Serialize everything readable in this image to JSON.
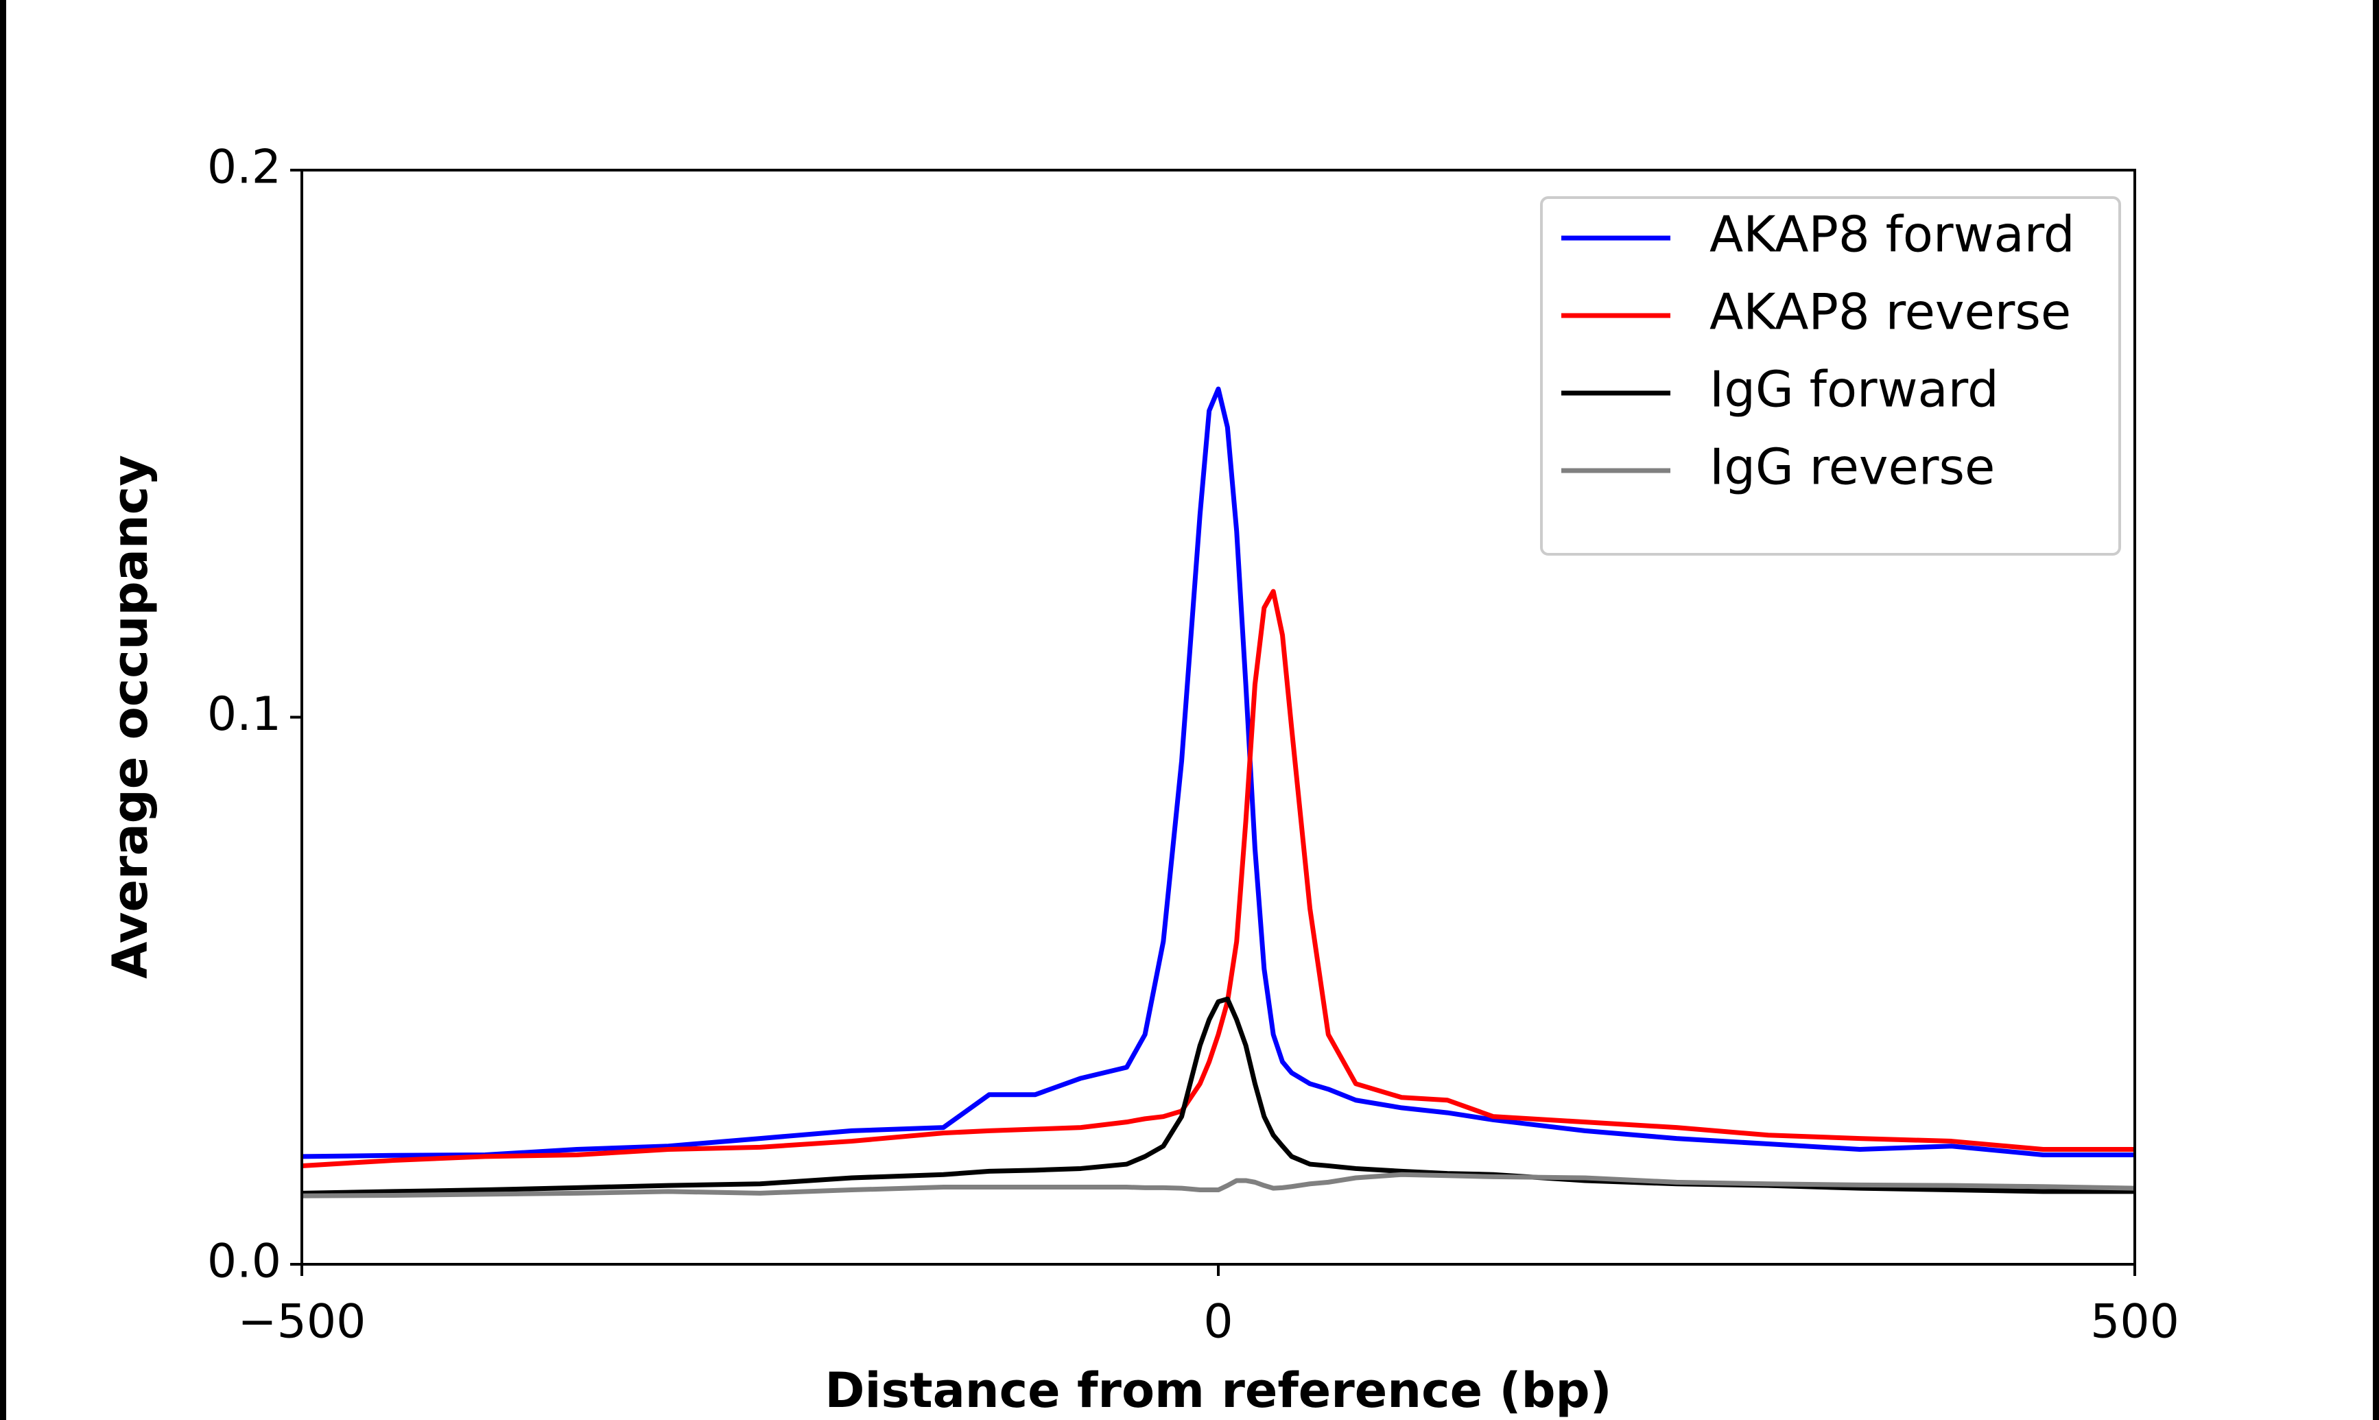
{
  "chart_data": {
    "type": "line",
    "xlabel": "Distance from reference (bp)",
    "ylabel": "Average occupancy",
    "x": [
      -500,
      -450,
      -400,
      -350,
      -300,
      -250,
      -200,
      -150,
      -125,
      -100,
      -75,
      -50,
      -40,
      -30,
      -20,
      -10,
      -5,
      0,
      5,
      10,
      15,
      20,
      25,
      30,
      35,
      40,
      50,
      60,
      75,
      100,
      125,
      150,
      200,
      250,
      300,
      350,
      400,
      450,
      500
    ],
    "series": [
      {
        "name": "AKAP8 forward",
        "color": "#0000ff",
        "values": [
          0.0197,
          0.0199,
          0.02,
          0.021,
          0.0216,
          0.023,
          0.0244,
          0.025,
          0.031,
          0.031,
          0.034,
          0.036,
          0.042,
          0.059,
          0.092,
          0.137,
          0.156,
          0.16,
          0.153,
          0.134,
          0.106,
          0.076,
          0.054,
          0.042,
          0.037,
          0.035,
          0.033,
          0.032,
          0.03,
          0.0286,
          0.0277,
          0.0264,
          0.0244,
          0.023,
          0.022,
          0.021,
          0.0216,
          0.02,
          0.02
        ]
      },
      {
        "name": "AKAP8 reverse",
        "color": "#ff0000",
        "values": [
          0.018,
          0.019,
          0.0197,
          0.02,
          0.021,
          0.0214,
          0.0225,
          0.024,
          0.0244,
          0.0247,
          0.025,
          0.026,
          0.0266,
          0.027,
          0.028,
          0.033,
          0.037,
          0.042,
          0.048,
          0.059,
          0.081,
          0.106,
          0.12,
          0.123,
          0.115,
          0.098,
          0.065,
          0.042,
          0.033,
          0.0305,
          0.03,
          0.027,
          0.026,
          0.025,
          0.0236,
          0.023,
          0.0225,
          0.021,
          0.021
        ]
      },
      {
        "name": "IgG forward",
        "color": "#000000",
        "values": [
          0.013,
          0.0133,
          0.0136,
          0.014,
          0.0144,
          0.0147,
          0.0158,
          0.0164,
          0.017,
          0.0172,
          0.0175,
          0.0183,
          0.0197,
          0.0216,
          0.027,
          0.04,
          0.0447,
          0.048,
          0.0485,
          0.0447,
          0.04,
          0.033,
          0.027,
          0.0236,
          0.0216,
          0.0197,
          0.0183,
          0.018,
          0.0175,
          0.017,
          0.0166,
          0.0164,
          0.0153,
          0.0147,
          0.0144,
          0.0139,
          0.0136,
          0.0133,
          0.0133
        ]
      },
      {
        "name": "IgG reverse",
        "color": "#808080",
        "values": [
          0.0125,
          0.0126,
          0.0128,
          0.013,
          0.0133,
          0.013,
          0.0136,
          0.0141,
          0.0141,
          0.0141,
          0.0141,
          0.0141,
          0.014,
          0.014,
          0.0139,
          0.0136,
          0.0136,
          0.0136,
          0.0144,
          0.0153,
          0.0153,
          0.015,
          0.0144,
          0.0139,
          0.014,
          0.0142,
          0.0147,
          0.015,
          0.0158,
          0.0164,
          0.0162,
          0.016,
          0.0158,
          0.015,
          0.0147,
          0.0145,
          0.0144,
          0.0142,
          0.0139
        ]
      }
    ],
    "xlim": [
      -500,
      500
    ],
    "xticks": [
      {
        "value": -500,
        "label": "−500"
      },
      0,
      500
    ],
    "ylim": [
      0,
      0.2
    ],
    "yticks": [
      {
        "value": 0,
        "label": "0.0"
      },
      0.1,
      0.2
    ],
    "grid": false,
    "legend": "upper right"
  }
}
